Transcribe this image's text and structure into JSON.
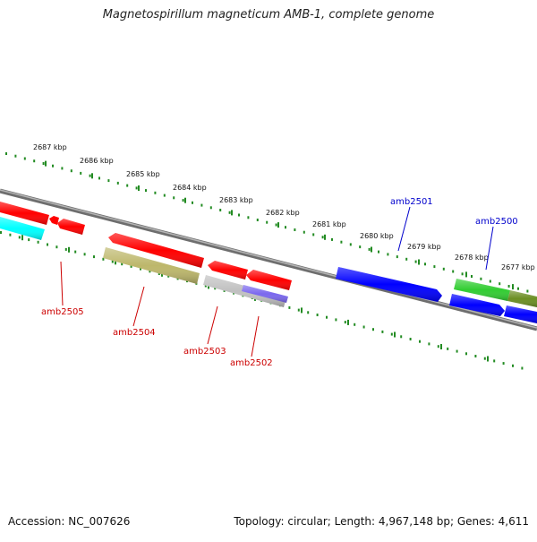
{
  "title": "Magnetospirillum magneticum AMB-1, complete genome",
  "footer": {
    "accession": "Accession: NC_007626",
    "summary": "Topology: circular; Length: 4,967,148 bp; Genes: 4,611"
  },
  "ruler": {
    "color": "#228B22",
    "labels": [
      "2687 kbp",
      "2686 kbp",
      "2685 kbp",
      "2684 kbp",
      "2683 kbp",
      "2682 kbp",
      "2681 kbp",
      "2680 kbp",
      "2679 kbp",
      "2678 kbp",
      "2677 kbp"
    ]
  },
  "backbone": {
    "color": "#808080"
  },
  "genes": [
    {
      "id": "g-a",
      "strand": "minus",
      "color": "#ff0000"
    },
    {
      "id": "g-b",
      "strand": "minus",
      "color": "#ff0000"
    },
    {
      "id": "g-c",
      "strand": "minus",
      "color": "#ff0000"
    },
    {
      "id": "g-cyan",
      "strand": "minus",
      "color": "#00ffff"
    },
    {
      "id": "amb2505-bar",
      "strand": "minus",
      "color": "#ff0000"
    },
    {
      "id": "amb2504",
      "strand": "minus",
      "color": "#bdb76b"
    },
    {
      "id": "amb2503",
      "strand": "minus",
      "color": "#c0c0c0"
    },
    {
      "id": "amb2502",
      "strand": "minus",
      "color": "#7b68ee"
    },
    {
      "id": "g-d",
      "strand": "minus",
      "color": "#ff0000"
    },
    {
      "id": "g-e",
      "strand": "minus",
      "color": "#ff0000"
    },
    {
      "id": "amb2501",
      "strand": "plus",
      "color": "#0000ff"
    },
    {
      "id": "amb2500",
      "strand": "plus",
      "color": "#0000ff"
    },
    {
      "id": "g-green",
      "strand": "plus",
      "color": "#32cd32"
    },
    {
      "id": "g-olive",
      "strand": "plus",
      "color": "#6b8e23"
    },
    {
      "id": "g-blue2",
      "strand": "plus",
      "color": "#0000ff"
    }
  ],
  "gene_labels": {
    "amb2505": {
      "text": "amb2505",
      "color": "#cc0000"
    },
    "amb2504": {
      "text": "amb2504",
      "color": "#cc0000"
    },
    "amb2503": {
      "text": "amb2503",
      "color": "#cc0000"
    },
    "amb2502": {
      "text": "amb2502",
      "color": "#cc0000"
    },
    "amb2501": {
      "text": "amb2501",
      "color": "#0000cc"
    },
    "amb2500": {
      "text": "amb2500",
      "color": "#0000cc"
    }
  }
}
